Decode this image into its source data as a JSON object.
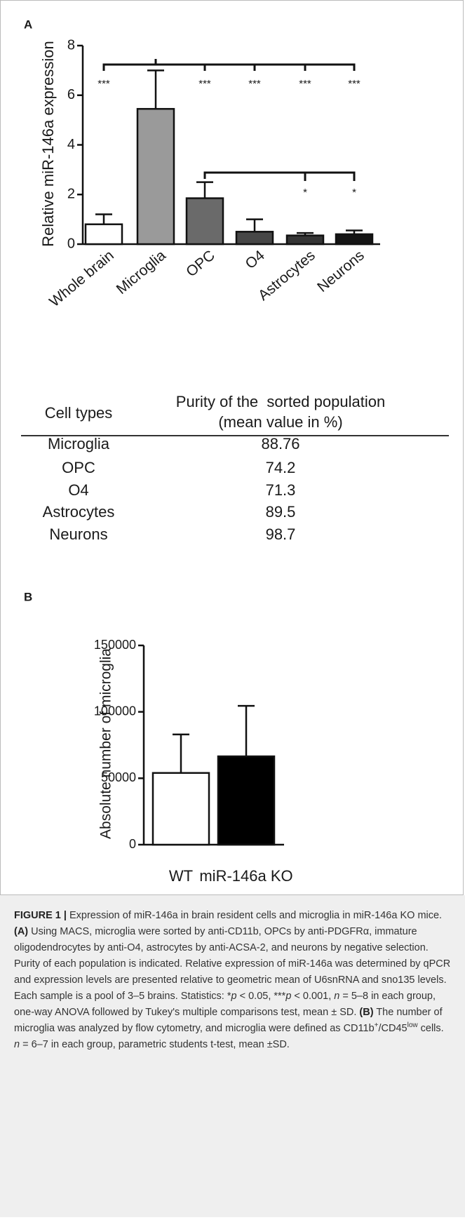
{
  "chart_data": [
    {
      "type": "bar",
      "panel": "A",
      "ylabel": "Relative miR-146a expression",
      "categories": [
        "Whole brain",
        "Microglia",
        "OPC",
        "O4",
        "Astrocytes",
        "Neurons"
      ],
      "values": [
        0.8,
        5.45,
        1.85,
        0.5,
        0.35,
        0.4
      ],
      "errors": [
        0.4,
        1.55,
        0.65,
        0.5,
        0.1,
        0.15
      ],
      "colors": [
        "#ffffff",
        "#9a9a9a",
        "#6a6a6a",
        "#474747",
        "#353535",
        "#151515"
      ],
      "ylim": [
        0,
        8
      ],
      "yticks": [
        0,
        2,
        4,
        6,
        8
      ],
      "annotations": [
        "***",
        "***",
        "***",
        "***",
        "***",
        "*",
        "*"
      ]
    },
    {
      "type": "bar",
      "panel": "B",
      "ylabel": "Absolute number of microglia",
      "categories": [
        "WT",
        "miR-146a KO"
      ],
      "values": [
        54000,
        66500
      ],
      "errors": [
        29000,
        38000
      ],
      "colors": [
        "#ffffff",
        "#000000"
      ],
      "ylim": [
        0,
        150000
      ],
      "yticks": [
        0,
        50000,
        100000,
        150000
      ]
    }
  ],
  "table": {
    "header": [
      [
        "Cell types"
      ],
      [
        "Purity of the  sorted population",
        "(mean value in %)"
      ]
    ],
    "rows": [
      [
        "Microglia",
        "88.76"
      ],
      [
        "OPC",
        "74.2"
      ],
      [
        "O4",
        "71.3"
      ],
      [
        "Astrocytes",
        "89.5"
      ],
      [
        "Neurons",
        "98.7"
      ]
    ]
  },
  "caption": {
    "parts": [
      "FIGURE 1 |",
      " Expression of miR-146a in brain resident cells and microglia in miR-146a KO mice. ",
      "(A)",
      " Using MACS, microglia were sorted by anti-CD11b, OPCs by anti-PDGFRα, immature oligodendrocytes by anti-O4, astrocytes by anti-ACSA-2, and neurons by negative selection. Purity of each population is indicated. Relative expression of miR-146a was determined by qPCR and expression levels are presented relative to geometric mean of U6snRNA and sno135 levels. Each sample is a pool of 3–5 brains. Statistics: *",
      "p",
      " < 0.05, ***",
      "p",
      " < 0.001, ",
      "n",
      " = 5–8 in each group, one-way ANOVA followed by Tukey's multiple comparisons test, mean ± SD. ",
      "(B)",
      " The number of microglia was analyzed by flow cytometry, and microglia were defined as CD11b",
      "+",
      "/CD45",
      "low",
      " cells. ",
      "n",
      " = 6–7 in each group, parametric students t-test, mean ±SD."
    ]
  }
}
